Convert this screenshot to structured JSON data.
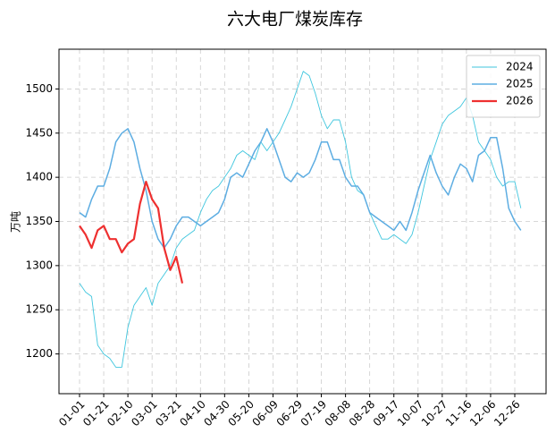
{
  "chart_data": {
    "type": "line",
    "title": "六大电厂煤炭库存",
    "y_label": "万吨",
    "categories": [
      "01-01",
      null,
      null,
      null,
      "01-21",
      null,
      null,
      null,
      "02-10",
      null,
      null,
      null,
      "03-01",
      null,
      null,
      null,
      "03-21",
      null,
      null,
      null,
      "04-10",
      null,
      null,
      null,
      "04-30",
      null,
      null,
      null,
      "05-20",
      null,
      null,
      null,
      "06-09",
      null,
      null,
      null,
      "06-29",
      null,
      null,
      null,
      "07-19",
      null,
      null,
      null,
      "08-08",
      null,
      null,
      null,
      "08-28",
      null,
      null,
      null,
      "09-17",
      null,
      null,
      null,
      "10-07",
      null,
      null,
      null,
      "10-27",
      null,
      null,
      null,
      "11-16",
      null,
      null,
      null,
      "12-06",
      null,
      null,
      null,
      "12-26",
      null
    ],
    "series": [
      {
        "name": "2024",
        "color": "#3fc6de",
        "width": 0.9,
        "values": [
          1280,
          1270,
          1265,
          1210,
          1200,
          1195,
          1185,
          1185,
          1230,
          1255,
          1265,
          1275,
          1255,
          1280,
          1290,
          1300,
          1320,
          1330,
          1335,
          1340,
          1360,
          1375,
          1385,
          1390,
          1400,
          1410,
          1425,
          1430,
          1425,
          1420,
          1440,
          1430,
          1440,
          1450,
          1465,
          1480,
          1500,
          1520,
          1515,
          1495,
          1470,
          1455,
          1465,
          1465,
          1440,
          1400,
          1385,
          1380,
          1360,
          1345,
          1330,
          1330,
          1335,
          1330,
          1325,
          1335,
          1360,
          1390,
          1420,
          1440,
          1460,
          1470,
          1475,
          1480,
          1490,
          1470,
          1440,
          1430,
          1420,
          1400,
          1390,
          1395,
          1395,
          1365
        ]
      },
      {
        "name": "2025",
        "color": "#5dade2",
        "width": 1.5,
        "values": [
          1360,
          1355,
          1375,
          1390,
          1390,
          1410,
          1440,
          1450,
          1455,
          1440,
          1410,
          1385,
          1350,
          1330,
          1320,
          1330,
          1345,
          1355,
          1355,
          1350,
          1345,
          1350,
          1355,
          1360,
          1375,
          1400,
          1405,
          1400,
          1415,
          1430,
          1440,
          1455,
          1440,
          1420,
          1400,
          1395,
          1405,
          1400,
          1405,
          1420,
          1440,
          1440,
          1420,
          1420,
          1400,
          1390,
          1390,
          1380,
          1360,
          1355,
          1350,
          1345,
          1340,
          1350,
          1340,
          1360,
          1385,
          1405,
          1425,
          1405,
          1390,
          1380,
          1400,
          1415,
          1410,
          1395,
          1425,
          1430,
          1445,
          1445,
          1410,
          1365,
          1350,
          1340
        ]
      },
      {
        "name": "2026",
        "color": "#ee3030",
        "width": 2.2,
        "values": [
          1345,
          1335,
          1320,
          1340,
          1345,
          1330,
          1330,
          1315,
          1325,
          1330,
          1370,
          1395,
          1375,
          1365,
          1320,
          1295,
          1310,
          1280,
          null,
          null,
          null,
          null,
          null,
          null,
          null,
          null,
          null,
          null,
          null,
          null,
          null,
          null,
          null,
          null,
          null,
          null,
          null,
          null,
          null,
          null,
          null,
          null,
          null,
          null,
          null,
          null,
          null,
          null,
          null,
          null,
          null,
          null,
          null,
          null,
          null,
          null,
          null,
          null,
          null,
          null,
          null,
          null,
          null,
          null,
          null,
          null,
          null,
          null,
          null,
          null,
          null,
          null,
          null,
          null
        ]
      }
    ],
    "ylim": [
      1155,
      1545
    ],
    "yticks": [
      1200,
      1250,
      1300,
      1350,
      1400,
      1450,
      1500
    ],
    "grid": true,
    "legend": "upper right"
  }
}
